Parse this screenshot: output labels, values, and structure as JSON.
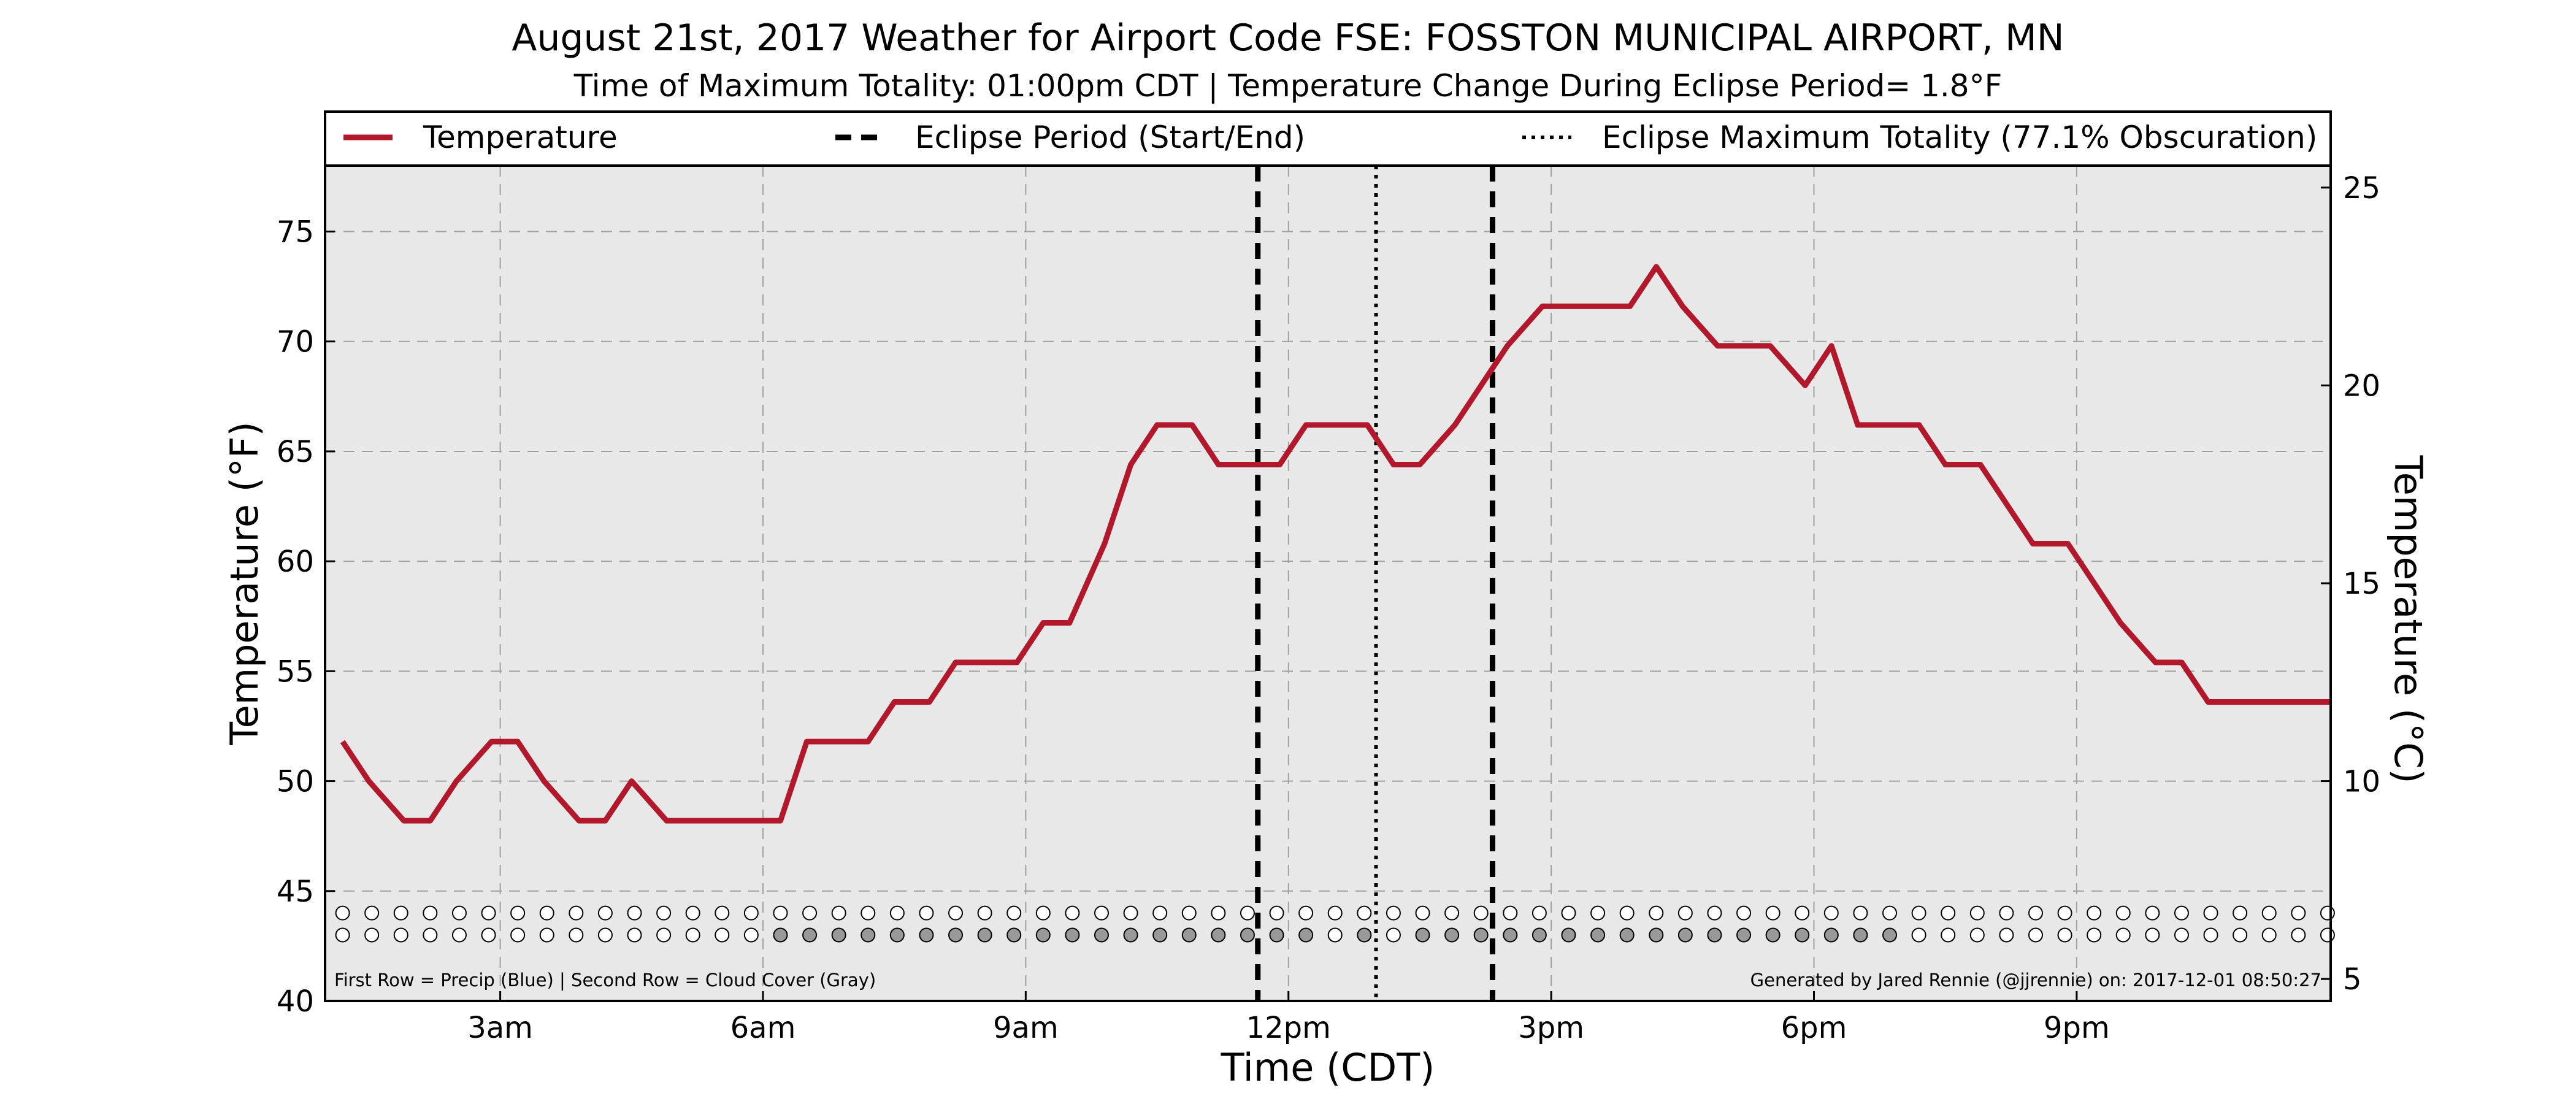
{
  "chart_data": {
    "type": "line",
    "title": "August 21st, 2017 Weather for Airport Code FSE: FOSSTON MUNICIPAL AIRPORT, MN",
    "subtitle": "Time of Maximum Totality: 01:00pm CDT | Temperature Change During Eclipse Period= 1.8°F",
    "xlabel": "Time (CDT)",
    "ylabel": "Temperature (°F)",
    "y2label": "Temperature (°C)",
    "xlim": [
      1.0,
      23.9
    ],
    "ylim": [
      40,
      78
    ],
    "x_ticks": [
      {
        "value": 3,
        "label": "3am"
      },
      {
        "value": 6,
        "label": "6am"
      },
      {
        "value": 9,
        "label": "9am"
      },
      {
        "value": 12,
        "label": "12pm"
      },
      {
        "value": 15,
        "label": "3pm"
      },
      {
        "value": 18,
        "label": "6pm"
      },
      {
        "value": 21,
        "label": "9pm"
      }
    ],
    "y_ticks": [
      40,
      45,
      50,
      55,
      60,
      65,
      70,
      75
    ],
    "y2_ticks": [
      5,
      10,
      15,
      20,
      25
    ],
    "grid": true,
    "legend_placement": "top",
    "series": [
      {
        "name": "Temperature",
        "color": "#b2182b",
        "x": [
          1.2,
          1.5,
          1.9,
          2.2,
          2.5,
          2.9,
          3.2,
          3.5,
          3.9,
          4.2,
          4.5,
          4.9,
          5.2,
          5.5,
          5.9,
          6.2,
          6.5,
          6.9,
          7.2,
          7.5,
          7.9,
          8.2,
          8.5,
          8.9,
          9.2,
          9.5,
          9.9,
          10.2,
          10.5,
          10.9,
          11.2,
          11.5,
          11.9,
          12.2,
          12.5,
          12.9,
          13.2,
          13.5,
          13.9,
          14.2,
          14.5,
          14.9,
          15.2,
          15.5,
          15.9,
          16.2,
          16.5,
          16.9,
          17.2,
          17.5,
          17.9,
          18.2,
          18.5,
          18.9,
          19.2,
          19.5,
          19.9,
          20.2,
          20.5,
          20.9,
          21.2,
          21.5,
          21.9,
          22.2,
          22.5,
          22.9,
          23.2,
          23.5,
          23.9
        ],
        "values": [
          51.8,
          50.0,
          48.2,
          48.2,
          50.0,
          51.8,
          51.8,
          50.0,
          48.2,
          48.2,
          50.0,
          48.2,
          48.2,
          48.2,
          48.2,
          48.2,
          51.8,
          51.8,
          51.8,
          53.6,
          53.6,
          55.4,
          55.4,
          55.4,
          57.2,
          57.2,
          60.8,
          64.4,
          66.2,
          66.2,
          64.4,
          64.4,
          64.4,
          66.2,
          66.2,
          66.2,
          64.4,
          64.4,
          66.2,
          68.0,
          69.8,
          71.6,
          71.6,
          71.6,
          71.6,
          73.4,
          71.6,
          69.8,
          69.8,
          69.8,
          68.0,
          69.8,
          66.2,
          66.2,
          66.2,
          64.4,
          64.4,
          62.6,
          60.8,
          60.8,
          59.0,
          57.2,
          55.4,
          55.4,
          53.6,
          53.6,
          53.6,
          53.6,
          53.6
        ]
      }
    ],
    "eclipse": {
      "start_x": 11.65,
      "max_x": 13.0,
      "end_x": 14.33
    },
    "legend": [
      {
        "label": "Temperature",
        "style": "solid",
        "color": "#b2182b"
      },
      {
        "label": "Eclipse Period (Start/End)",
        "style": "dashed",
        "color": "#000000"
      },
      {
        "label": "Eclipse Maximum Totality (77.1% Obscuration)",
        "style": "dotted",
        "color": "#000000"
      }
    ],
    "markers": {
      "x_start": 1.2,
      "x_step": 0.3333,
      "count": 69,
      "precip_y": 44.0,
      "cloud_y": 43.0,
      "precip_color": "#ffffff",
      "cloud_filled_color": "#999999",
      "cloud_filled_range": [
        6.2,
        18.9
      ],
      "cloud_clear_x": [
        12.5,
        13.2
      ]
    },
    "notes": {
      "rows": "First Row = Precip (Blue) | Second Row = Cloud Cover (Gray)",
      "credit": "Generated by Jared Rennie (@jjrennie) on: 2017-12-01 08:50:27"
    },
    "plot_background": "#e8e8e8"
  }
}
